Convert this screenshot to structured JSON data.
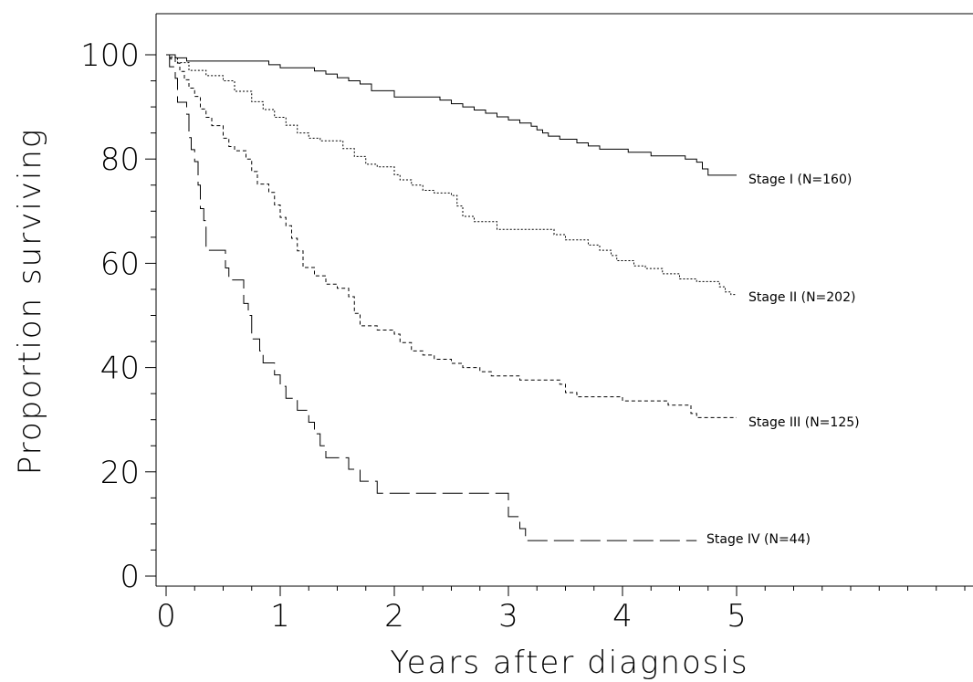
{
  "chart_data": {
    "type": "line",
    "title": "",
    "xlabel": "Years after diagnosis",
    "ylabel": "Proportion surviving",
    "xlim": [
      0,
      7
    ],
    "ylim": [
      0,
      100
    ],
    "x_ticks": [
      "0",
      "1",
      "2",
      "3",
      "4",
      "5"
    ],
    "y_ticks": [
      "0",
      "20",
      "40",
      "60",
      "80",
      "100"
    ],
    "grid": false,
    "legend": "labels at line ends",
    "series": [
      {
        "name": "Stage I (N=160)",
        "style": "solid",
        "points": [
          [
            0,
            100
          ],
          [
            0.08,
            99.4
          ],
          [
            0.18,
            98.8
          ],
          [
            0.6,
            98.8
          ],
          [
            0.9,
            98.1
          ],
          [
            1.0,
            97.5
          ],
          [
            1.2,
            97.5
          ],
          [
            1.3,
            96.9
          ],
          [
            1.4,
            96.3
          ],
          [
            1.5,
            95.6
          ],
          [
            1.6,
            95
          ],
          [
            1.7,
            94.4
          ],
          [
            1.8,
            93.1
          ],
          [
            2.0,
            91.9
          ],
          [
            2.4,
            91.3
          ],
          [
            2.5,
            90.6
          ],
          [
            2.6,
            90
          ],
          [
            2.7,
            89.4
          ],
          [
            2.8,
            88.8
          ],
          [
            2.9,
            88.1
          ],
          [
            3.0,
            87.5
          ],
          [
            3.1,
            86.9
          ],
          [
            3.2,
            86.3
          ],
          [
            3.25,
            85.6
          ],
          [
            3.3,
            85
          ],
          [
            3.35,
            84.4
          ],
          [
            3.45,
            83.8
          ],
          [
            3.6,
            83.1
          ],
          [
            3.7,
            82.5
          ],
          [
            3.8,
            81.9
          ],
          [
            4.0,
            81.9
          ],
          [
            4.05,
            81.3
          ],
          [
            4.25,
            80.6
          ],
          [
            4.55,
            80
          ],
          [
            4.65,
            79.4
          ],
          [
            4.7,
            78.1
          ],
          [
            4.75,
            76.9
          ],
          [
            4.85,
            76.9
          ],
          [
            5.0,
            76.9
          ]
        ]
      },
      {
        "name": "Stage II (N=202)",
        "style": "dotted",
        "points": [
          [
            0,
            100
          ],
          [
            0.05,
            99.5
          ],
          [
            0.1,
            98.5
          ],
          [
            0.2,
            97
          ],
          [
            0.35,
            96
          ],
          [
            0.5,
            95
          ],
          [
            0.6,
            93
          ],
          [
            0.75,
            91
          ],
          [
            0.85,
            89.5
          ],
          [
            0.95,
            88
          ],
          [
            1.05,
            86.5
          ],
          [
            1.15,
            85
          ],
          [
            1.25,
            84
          ],
          [
            1.35,
            83.5
          ],
          [
            1.55,
            82
          ],
          [
            1.65,
            80.5
          ],
          [
            1.75,
            79
          ],
          [
            1.85,
            78.5
          ],
          [
            2.0,
            77
          ],
          [
            2.05,
            76
          ],
          [
            2.15,
            75
          ],
          [
            2.25,
            74
          ],
          [
            2.35,
            73.5
          ],
          [
            2.5,
            73
          ],
          [
            2.55,
            71
          ],
          [
            2.6,
            69
          ],
          [
            2.7,
            68
          ],
          [
            2.9,
            66.5
          ],
          [
            3.1,
            66.5
          ],
          [
            3.4,
            65.5
          ],
          [
            3.5,
            64.5
          ],
          [
            3.7,
            63.5
          ],
          [
            3.8,
            62.5
          ],
          [
            3.9,
            61.5
          ],
          [
            3.95,
            60.5
          ],
          [
            4.1,
            59.5
          ],
          [
            4.2,
            59
          ],
          [
            4.35,
            58
          ],
          [
            4.5,
            57
          ],
          [
            4.65,
            56.5
          ],
          [
            4.85,
            55.5
          ],
          [
            4.9,
            54.5
          ],
          [
            4.95,
            54
          ],
          [
            5.0,
            54
          ]
        ]
      },
      {
        "name": "Stage III (N=125)",
        "style": "short-dash",
        "points": [
          [
            0,
            100
          ],
          [
            0.04,
            99.2
          ],
          [
            0.08,
            98.4
          ],
          [
            0.12,
            96.8
          ],
          [
            0.16,
            95.2
          ],
          [
            0.2,
            93.6
          ],
          [
            0.25,
            92
          ],
          [
            0.3,
            89.6
          ],
          [
            0.35,
            88
          ],
          [
            0.4,
            86.4
          ],
          [
            0.5,
            84
          ],
          [
            0.55,
            82.4
          ],
          [
            0.6,
            81.6
          ],
          [
            0.7,
            80
          ],
          [
            0.75,
            77.6
          ],
          [
            0.8,
            75.2
          ],
          [
            0.9,
            73.6
          ],
          [
            0.95,
            71.2
          ],
          [
            1.0,
            68.8
          ],
          [
            1.05,
            67.2
          ],
          [
            1.1,
            64.8
          ],
          [
            1.15,
            62.4
          ],
          [
            1.2,
            59.2
          ],
          [
            1.3,
            57.6
          ],
          [
            1.4,
            56
          ],
          [
            1.5,
            55.2
          ],
          [
            1.6,
            53.6
          ],
          [
            1.65,
            50.4
          ],
          [
            1.7,
            48
          ],
          [
            1.85,
            47.2
          ],
          [
            2.0,
            46.4
          ],
          [
            2.05,
            44.8
          ],
          [
            2.15,
            43.2
          ],
          [
            2.25,
            42.4
          ],
          [
            2.35,
            41.6
          ],
          [
            2.5,
            40.8
          ],
          [
            2.6,
            40
          ],
          [
            2.75,
            39.2
          ],
          [
            2.85,
            38.4
          ],
          [
            3.0,
            38.4
          ],
          [
            3.1,
            37.6
          ],
          [
            3.45,
            36.8
          ],
          [
            3.5,
            35.2
          ],
          [
            3.6,
            34.4
          ],
          [
            3.8,
            34.4
          ],
          [
            4.0,
            33.6
          ],
          [
            4.2,
            33.6
          ],
          [
            4.4,
            32.8
          ],
          [
            4.6,
            31.2
          ],
          [
            4.65,
            30.4
          ],
          [
            5.0,
            30.4
          ]
        ]
      },
      {
        "name": "Stage IV (N=44)",
        "style": "long-dash",
        "points": [
          [
            0,
            100
          ],
          [
            0.03,
            97.7
          ],
          [
            0.08,
            95.5
          ],
          [
            0.1,
            90.9
          ],
          [
            0.18,
            88.6
          ],
          [
            0.2,
            84.1
          ],
          [
            0.22,
            81.8
          ],
          [
            0.25,
            79.5
          ],
          [
            0.28,
            75
          ],
          [
            0.3,
            70.5
          ],
          [
            0.33,
            68.2
          ],
          [
            0.35,
            62.5
          ],
          [
            0.5,
            62.5
          ],
          [
            0.52,
            59.1
          ],
          [
            0.55,
            56.8
          ],
          [
            0.65,
            56.8
          ],
          [
            0.68,
            52.3
          ],
          [
            0.72,
            50
          ],
          [
            0.75,
            45.5
          ],
          [
            0.82,
            43.2
          ],
          [
            0.85,
            40.9
          ],
          [
            0.95,
            38.6
          ],
          [
            1.0,
            36.4
          ],
          [
            1.05,
            34.1
          ],
          [
            1.15,
            31.8
          ],
          [
            1.25,
            29.5
          ],
          [
            1.3,
            27.3
          ],
          [
            1.35,
            25
          ],
          [
            1.4,
            22.7
          ],
          [
            1.55,
            22.7
          ],
          [
            1.6,
            20.5
          ],
          [
            1.7,
            18.2
          ],
          [
            1.85,
            15.9
          ],
          [
            2.95,
            15.9
          ],
          [
            3.0,
            11.4
          ],
          [
            3.1,
            9.1
          ],
          [
            3.15,
            6.8
          ],
          [
            4.65,
            6.8
          ]
        ]
      }
    ]
  }
}
